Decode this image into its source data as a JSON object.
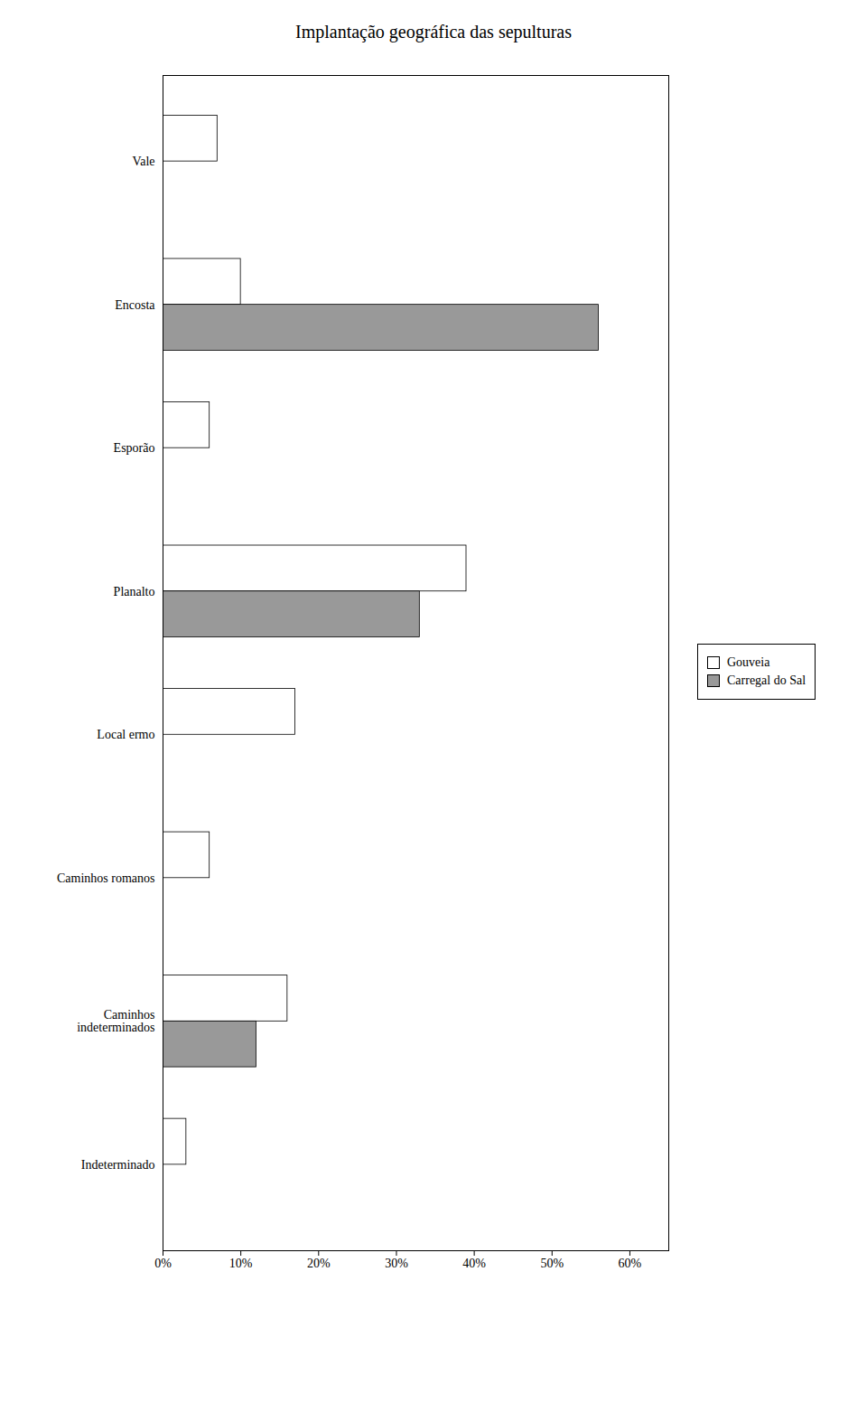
{
  "chart_data": {
    "type": "bar",
    "orientation": "horizontal",
    "title": "Implantação geográfica das sepulturas",
    "categories": [
      "Indeterminado",
      "Caminhos\nindeterminados",
      "Caminhos romanos",
      "Local ermo",
      "Planalto",
      "Esporão",
      "Encosta",
      "Vale"
    ],
    "series": [
      {
        "name": "Gouveia",
        "color": "#ffffff",
        "values": [
          3,
          16,
          6,
          17,
          39,
          6,
          10,
          7
        ]
      },
      {
        "name": "Carregal do Sal",
        "color": "#999999",
        "values": [
          0,
          12,
          0,
          0,
          33,
          0,
          56,
          0
        ]
      }
    ],
    "xlim": [
      0,
      65
    ],
    "xticks": [
      {
        "value": 0,
        "label": "0%"
      },
      {
        "value": 10,
        "label": "10%"
      },
      {
        "value": 20,
        "label": "20%"
      },
      {
        "value": 30,
        "label": "30%"
      },
      {
        "value": 40,
        "label": "40%"
      },
      {
        "value": 50,
        "label": "50%"
      },
      {
        "value": 60,
        "label": "60%"
      }
    ],
    "grid": false,
    "legend": "right"
  }
}
